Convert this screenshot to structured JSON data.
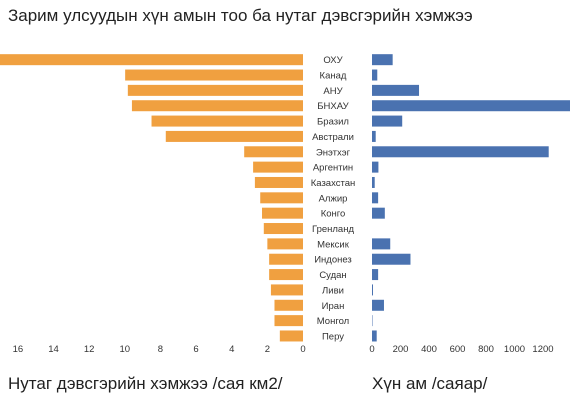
{
  "chart_data": {
    "type": "bar",
    "title": "Зарим улсуудын хүн амын тоо ба нутаг дэвсгэрийн хэмжээ",
    "categories": [
      "ОХУ",
      "Канад",
      "АНУ",
      "БНХАУ",
      "Бразил",
      "Австрали",
      "Энэтхэг",
      "Аргентин",
      "Казахстан",
      "Алжир",
      "Конго",
      "Гренланд",
      "Мексик",
      "Индонез",
      "Судан",
      "Ливи",
      "Иран",
      "Монгол",
      "Перу"
    ],
    "series": [
      {
        "key": "area",
        "values": [
          17.1,
          9.98,
          9.83,
          9.6,
          8.5,
          7.7,
          3.3,
          2.8,
          2.7,
          2.4,
          2.3,
          2.2,
          2.0,
          1.9,
          1.9,
          1.8,
          1.6,
          1.6,
          1.3
        ],
        "color": "#f0a040",
        "xlabel": "Нутаг дэвсгэрийн хэмжээ /сая км2/",
        "xlim": [
          0,
          17
        ],
        "ticks": [
          16,
          14,
          12,
          10,
          8,
          6,
          4,
          2,
          0
        ]
      },
      {
        "key": "population",
        "values": [
          145,
          37,
          330,
          1400,
          212,
          26,
          1240,
          45,
          19,
          43,
          90,
          0.06,
          128,
          270,
          43,
          7,
          84,
          3.3,
          33
        ],
        "color": "#4a72b0",
        "xlabel": "Хүн ам /саяар/",
        "xlim": [
          0,
          1400
        ],
        "ticks": [
          0,
          200,
          400,
          600,
          800,
          1000,
          1200
        ]
      }
    ],
    "grid": false,
    "legend": "none"
  }
}
